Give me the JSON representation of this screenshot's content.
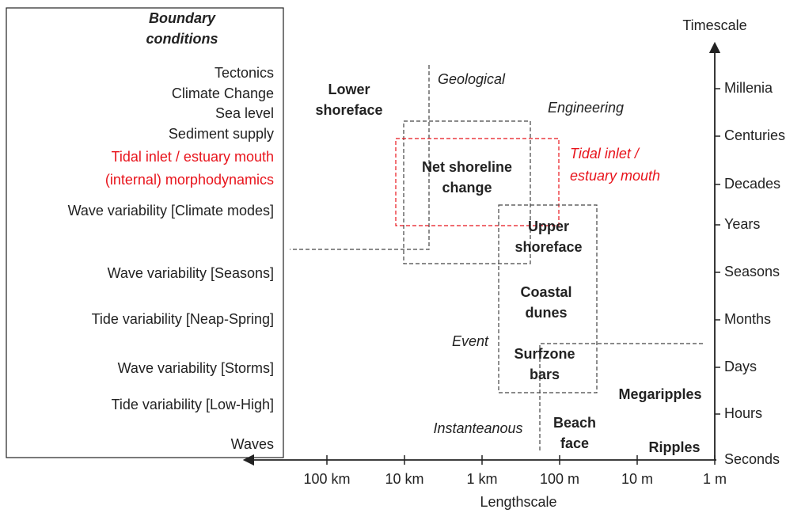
{
  "boundary_conditions": {
    "title": [
      "Boundary",
      "conditions"
    ],
    "items": [
      {
        "text": "Tectonics",
        "highlight": false
      },
      {
        "text": "Climate Change",
        "highlight": false
      },
      {
        "text": "Sea level",
        "highlight": false
      },
      {
        "text": "Sediment supply",
        "highlight": false
      },
      {
        "text": "Tidal inlet / estuary mouth",
        "highlight": true
      },
      {
        "text": "(internal) morphodynamics",
        "highlight": true
      },
      {
        "text": "Wave variability [Climate modes]",
        "highlight": false
      },
      {
        "text": "Wave variability [Seasons]",
        "highlight": false
      },
      {
        "text": "Tide variability [Neap-Spring]",
        "highlight": false
      },
      {
        "text": "Wave variability [Storms]",
        "highlight": false
      },
      {
        "text": "Tide variability [Low-High]",
        "highlight": false
      },
      {
        "text": "Waves",
        "highlight": false
      }
    ]
  },
  "axes": {
    "x_label": "Lengthscale",
    "y_label": "Timescale",
    "x_ticks": [
      "100 km",
      "10 km",
      "1 km",
      "100 m",
      "10 m",
      "1 m"
    ],
    "y_ticks": [
      "Millenia",
      "Centuries",
      "Decades",
      "Years",
      "Seasons",
      "Months",
      "Days",
      "Hours",
      "Seconds"
    ]
  },
  "regimes": [
    {
      "lines": [
        "Geological"
      ],
      "highlight": false
    },
    {
      "lines": [
        "Engineering"
      ],
      "highlight": false
    },
    {
      "lines": [
        "Tidal inlet /",
        "estuary mouth"
      ],
      "highlight": true
    },
    {
      "lines": [
        "Event"
      ],
      "highlight": false
    },
    {
      "lines": [
        "Instanteanous"
      ],
      "highlight": false
    }
  ],
  "features": [
    {
      "lines": [
        "Lower",
        "shoreface"
      ]
    },
    {
      "lines": [
        "Net shoreline",
        "change"
      ]
    },
    {
      "lines": [
        "Upper",
        "shoreface"
      ]
    },
    {
      "lines": [
        "Coastal",
        "dunes"
      ]
    },
    {
      "lines": [
        "Surfzone",
        "bars"
      ]
    },
    {
      "lines": [
        "Megaripples"
      ]
    },
    {
      "lines": [
        "Beach",
        "face"
      ]
    },
    {
      "lines": [
        "Ripples"
      ]
    }
  ]
}
